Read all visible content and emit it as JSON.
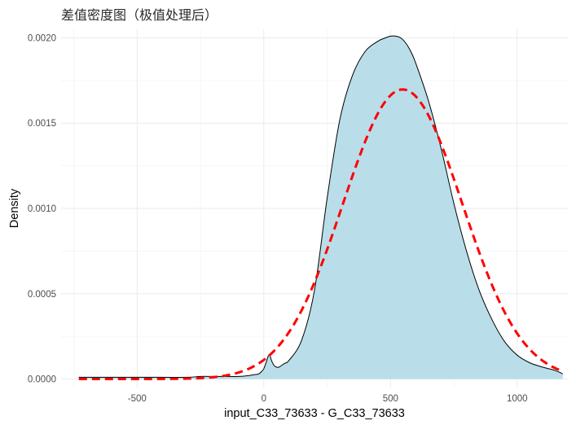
{
  "chart_data": {
    "type": "area",
    "title": "差值密度图（极值处理后）",
    "xlabel": "input_C33_73633 - G_C33_73633",
    "ylabel": "Density",
    "xlim": [
      -800,
      1200
    ],
    "ylim": [
      -5e-05,
      0.00205
    ],
    "x_ticks": [
      -500,
      0,
      500,
      1000
    ],
    "x_tick_labels": [
      "-500",
      "0",
      "500",
      "1000"
    ],
    "y_ticks": [
      0,
      0.0005,
      0.001,
      0.0015,
      0.002
    ],
    "y_tick_labels": [
      "0.0000",
      "0.0005",
      "0.0010",
      "0.0015",
      "0.0020"
    ],
    "grid": true,
    "colors": {
      "fill": "#add8e6",
      "outline": "#000000",
      "normal": "#ff0000"
    },
    "series": [
      {
        "type": "area",
        "x": [
          -730,
          -700,
          -600,
          -500,
          -400,
          -300,
          -250,
          -200,
          -150,
          -100,
          -60,
          -40,
          -20,
          -5,
          0,
          5,
          10,
          15,
          20,
          25,
          30,
          40,
          50,
          60,
          80,
          100,
          150,
          200,
          250,
          300,
          350,
          400,
          450,
          480,
          500,
          520,
          540,
          560,
          580,
          600,
          650,
          700,
          750,
          800,
          850,
          900,
          950,
          1000,
          1050,
          1100,
          1150,
          1180
        ],
        "y": [
          1e-05,
          1e-05,
          1e-05,
          1e-05,
          1e-05,
          1e-05,
          1.5e-05,
          1.5e-05,
          1.5e-05,
          1.5e-05,
          2e-05,
          2.5e-05,
          3e-05,
          5e-05,
          6e-05,
          8e-05,
          0.0001,
          0.000125,
          0.00014,
          0.000135,
          0.00011,
          8e-05,
          7e-05,
          7e-05,
          9e-05,
          0.00011,
          0.00023,
          0.00052,
          0.00106,
          0.00152,
          0.00178,
          0.00192,
          0.00198,
          0.002,
          0.00201,
          0.00201,
          0.002,
          0.00197,
          0.00192,
          0.00185,
          0.00163,
          0.00135,
          0.00103,
          0.00075,
          0.00052,
          0.00035,
          0.00022,
          0.00014,
          9.5e-05,
          7e-05,
          5e-05,
          3e-05
        ]
      },
      {
        "type": "line",
        "style": "dashed",
        "mean": 548,
        "sd": 235,
        "x_range": [
          -730,
          1180
        ]
      }
    ]
  }
}
